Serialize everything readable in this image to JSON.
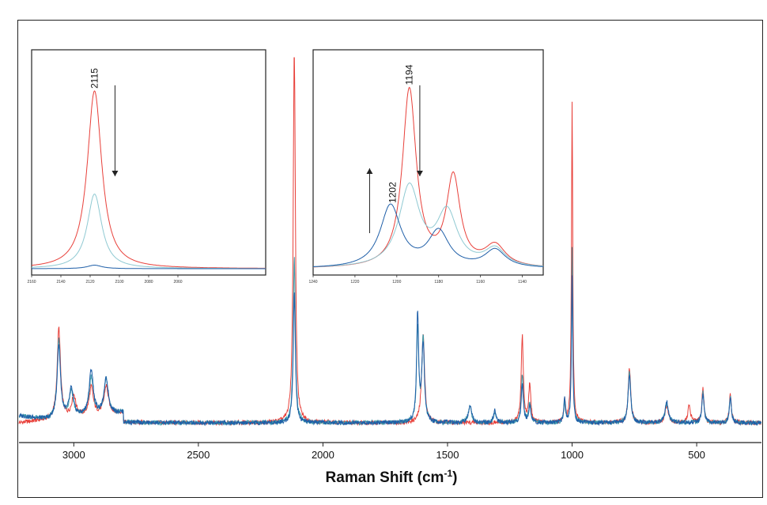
{
  "chart_data": {
    "type": "line",
    "xlabel": "Raman Shift (cm",
    "xlabel_sup": "-1",
    "xlabel_end": ")",
    "xlim": [
      3220,
      240
    ],
    "x_reversed": true,
    "xticks": [
      3000,
      2500,
      2000,
      1500,
      1000,
      500
    ],
    "grid": false,
    "colors": {
      "red": "#e8403a",
      "blue": "#1f5fa8",
      "teal": "#3c9aa8",
      "light": "#8fc9d2"
    },
    "main_series": [
      {
        "color": "red",
        "baseline": 0.115,
        "peaks": [
          [
            3060,
            0.52,
            8
          ],
          [
            3000,
            0.12,
            10
          ],
          [
            2930,
            0.16,
            10
          ],
          [
            2870,
            0.16,
            10
          ],
          [
            2115,
            2.2,
            5
          ],
          [
            1598,
            0.51,
            7
          ],
          [
            1200,
            0.5,
            5
          ],
          [
            1170,
            0.22,
            5
          ],
          [
            1030,
            0.12,
            4
          ],
          [
            1000,
            1.85,
            3
          ],
          [
            770,
            0.32,
            6
          ],
          [
            620,
            0.1,
            8
          ],
          [
            530,
            0.1,
            6
          ],
          [
            475,
            0.2,
            5
          ],
          [
            365,
            0.16,
            5
          ]
        ]
      },
      {
        "color": "blue",
        "baseline": 0.14,
        "peaks": [
          [
            3060,
            0.42,
            8
          ],
          [
            3010,
            0.16,
            10
          ],
          [
            2930,
            0.26,
            10
          ],
          [
            2870,
            0.2,
            10
          ],
          [
            2115,
            0.75,
            5
          ],
          [
            1620,
            0.62,
            5
          ],
          [
            1598,
            0.45,
            6
          ],
          [
            1410,
            0.1,
            8
          ],
          [
            1310,
            0.07,
            6
          ],
          [
            1200,
            0.22,
            5
          ],
          [
            1170,
            0.1,
            5
          ],
          [
            1030,
            0.14,
            4
          ],
          [
            1000,
            0.85,
            3
          ],
          [
            770,
            0.28,
            6
          ],
          [
            620,
            0.12,
            8
          ],
          [
            475,
            0.16,
            5
          ],
          [
            365,
            0.14,
            5
          ]
        ]
      },
      {
        "color": "teal",
        "baseline": 0.13,
        "peaks": [
          [
            3060,
            0.45,
            8
          ],
          [
            3010,
            0.15,
            10
          ],
          [
            2930,
            0.22,
            10
          ],
          [
            2870,
            0.2,
            10
          ],
          [
            2115,
            0.95,
            5
          ],
          [
            1620,
            0.55,
            5
          ],
          [
            1598,
            0.48,
            6
          ],
          [
            1410,
            0.09,
            8
          ],
          [
            1310,
            0.06,
            6
          ],
          [
            1200,
            0.28,
            5
          ],
          [
            1170,
            0.12,
            5
          ],
          [
            1030,
            0.12,
            4
          ],
          [
            1000,
            1.0,
            3
          ],
          [
            770,
            0.3,
            6
          ],
          [
            620,
            0.11,
            8
          ],
          [
            475,
            0.18,
            5
          ],
          [
            365,
            0.15,
            5
          ]
        ]
      }
    ],
    "insets": [
      {
        "xlim": [
          2160,
          2000
        ],
        "xticks": [
          2160,
          2140,
          2120,
          2100,
          2080,
          2060
        ],
        "annotations": [
          {
            "label": "2115",
            "x": 2117
          }
        ],
        "arrow": {
          "x": 2103,
          "direction": "down"
        },
        "series": [
          {
            "color": "red",
            "peaks": [
              [
                2117,
                1.0,
                6
              ]
            ]
          },
          {
            "color": "light",
            "peaks": [
              [
                2117,
                0.42,
                6
              ]
            ]
          },
          {
            "color": "blue",
            "peaks": [
              [
                2117,
                0.02,
                6
              ]
            ]
          }
        ]
      },
      {
        "xlim": [
          1240,
          1130
        ],
        "xticks": [
          1240,
          1220,
          1200,
          1180,
          1160,
          1140
        ],
        "annotations": [
          {
            "label": "1194",
            "x": 1194
          },
          {
            "label": "1202",
            "x": 1202
          }
        ],
        "arrows": [
          {
            "x": 1189,
            "direction": "down"
          },
          {
            "x": 1213,
            "direction": "up"
          }
        ],
        "series": [
          {
            "color": "red",
            "peaks": [
              [
                1194,
                1.0,
                4
              ],
              [
                1173,
                0.5,
                4
              ],
              [
                1153,
                0.12,
                6
              ]
            ]
          },
          {
            "color": "light",
            "peaks": [
              [
                1194,
                0.45,
                6
              ],
              [
                1176,
                0.3,
                6
              ],
              [
                1153,
                0.1,
                6
              ]
            ]
          },
          {
            "color": "blue",
            "peaks": [
              [
                1203,
                0.35,
                6
              ],
              [
                1180,
                0.2,
                6
              ],
              [
                1153,
                0.1,
                6
              ]
            ]
          }
        ]
      }
    ]
  }
}
